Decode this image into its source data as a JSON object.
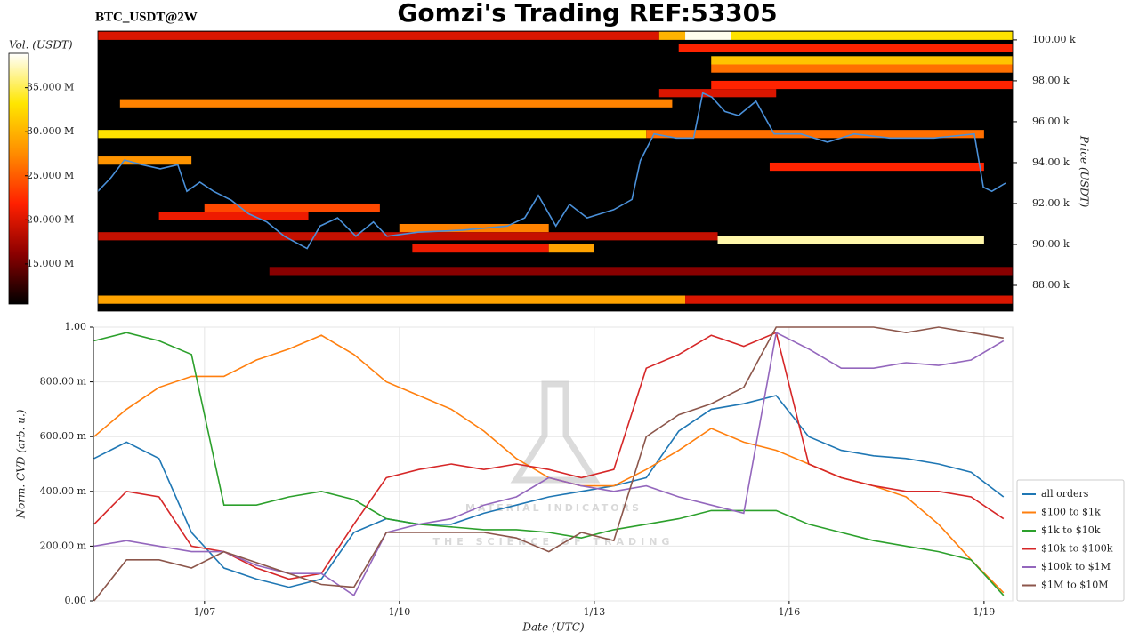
{
  "chart_data": [
    {
      "type": "heatmap",
      "title": "Gomzi's Trading REF:53305",
      "subtitle": "BTC_USDT@2W",
      "colorbar_label": "Vol. (USDT)",
      "y_label": "Price (USDT)",
      "colormap": [
        "#000000",
        "#8b0000",
        "#ff2000",
        "#ff8c00",
        "#ffe600",
        "#ffffff"
      ],
      "clim": [
        10.45,
        38.9
      ],
      "cticks": [
        {
          "value": 15,
          "label": "15.000 M"
        },
        {
          "value": 20,
          "label": "20.000 M"
        },
        {
          "value": 25,
          "label": "25.000 M"
        },
        {
          "value": 30,
          "label": "30.000 M"
        },
        {
          "value": 35,
          "label": "35.000 M"
        }
      ],
      "xlim": [
        5.36,
        19.44
      ],
      "ylim": [
        86.74,
        100.43
      ],
      "yticks": [
        {
          "value": 88,
          "label": "88.00 k"
        },
        {
          "value": 90,
          "label": "90.00 k"
        },
        {
          "value": 92,
          "label": "92.00 k"
        },
        {
          "value": 94,
          "label": "94.00 k"
        },
        {
          "value": 96,
          "label": "96.00 k"
        },
        {
          "value": 98,
          "label": "98.00 k"
        },
        {
          "value": 100,
          "label": "100.00 k"
        }
      ],
      "bin": 0.4,
      "bands": [
        {
          "price": 100.0,
          "start": 5.36,
          "end": 14.0,
          "volume": 20
        },
        {
          "price": 100.0,
          "start": 14.0,
          "end": 14.4,
          "volume": 30
        },
        {
          "price": 100.0,
          "start": 14.4,
          "end": 15.1,
          "volume": 38.5
        },
        {
          "price": 100.0,
          "start": 15.1,
          "end": 19.44,
          "volume": 33
        },
        {
          "price": 99.4,
          "start": 14.3,
          "end": 19.44,
          "volume": 22
        },
        {
          "price": 98.8,
          "start": 14.8,
          "end": 19.44,
          "volume": 31
        },
        {
          "price": 98.4,
          "start": 14.8,
          "end": 19.44,
          "volume": 26
        },
        {
          "price": 97.6,
          "start": 14.8,
          "end": 19.44,
          "volume": 22
        },
        {
          "price": 97.2,
          "start": 14.0,
          "end": 15.8,
          "volume": 20
        },
        {
          "price": 96.7,
          "start": 5.7,
          "end": 14.2,
          "volume": 27
        },
        {
          "price": 95.2,
          "start": 5.36,
          "end": 13.8,
          "volume": 33
        },
        {
          "price": 95.2,
          "start": 13.8,
          "end": 19.0,
          "volume": 26
        },
        {
          "price": 93.9,
          "start": 5.36,
          "end": 6.8,
          "volume": 28
        },
        {
          "price": 93.6,
          "start": 15.7,
          "end": 19.0,
          "volume": 22
        },
        {
          "price": 91.6,
          "start": 7.0,
          "end": 9.7,
          "volume": 24
        },
        {
          "price": 91.2,
          "start": 6.3,
          "end": 8.6,
          "volume": 21
        },
        {
          "price": 90.6,
          "start": 10.0,
          "end": 12.3,
          "volume": 27
        },
        {
          "price": 90.2,
          "start": 5.36,
          "end": 14.9,
          "volume": 19
        },
        {
          "price": 90.0,
          "start": 14.9,
          "end": 19.0,
          "volume": 37
        },
        {
          "price": 89.6,
          "start": 10.2,
          "end": 12.3,
          "volume": 21
        },
        {
          "price": 89.6,
          "start": 12.3,
          "end": 13.0,
          "volume": 29
        },
        {
          "price": 88.5,
          "start": 8.0,
          "end": 19.44,
          "volume": 16
        },
        {
          "price": 87.1,
          "start": 5.36,
          "end": 14.4,
          "volume": 29
        },
        {
          "price": 87.1,
          "start": 14.4,
          "end": 19.44,
          "volume": 20
        }
      ],
      "price": {
        "color": "#4a90d9",
        "x": [
          5.36,
          5.56,
          5.77,
          6.04,
          6.32,
          6.59,
          6.73,
          6.93,
          7.14,
          7.41,
          7.68,
          7.96,
          8.23,
          8.58,
          8.78,
          9.05,
          9.33,
          9.6,
          9.81,
          10.29,
          10.97,
          11.66,
          11.93,
          12.14,
          12.41,
          12.62,
          12.89,
          13.3,
          13.58,
          13.71,
          13.92,
          14.26,
          14.53,
          14.67,
          14.81,
          15.01,
          15.22,
          15.49,
          15.77,
          16.18,
          16.59,
          17.0,
          17.55,
          18.23,
          18.85,
          18.99,
          19.12,
          19.33
        ],
        "values": [
          92.6,
          93.26,
          94.13,
          93.9,
          93.7,
          93.9,
          92.6,
          93.04,
          92.6,
          92.17,
          91.5,
          91.1,
          90.4,
          89.8,
          90.9,
          91.3,
          90.4,
          91.1,
          90.4,
          90.6,
          90.7,
          90.9,
          91.3,
          92.4,
          90.9,
          91.96,
          91.3,
          91.7,
          92.2,
          94.1,
          95.4,
          95.2,
          95.2,
          97.4,
          97.2,
          96.5,
          96.3,
          97.0,
          95.4,
          95.4,
          95.0,
          95.4,
          95.2,
          95.2,
          95.4,
          92.8,
          92.6,
          93.0
        ]
      }
    },
    {
      "type": "line",
      "x_label": "Date (UTC)",
      "y_label": "Norm. CVD (arb. u.)",
      "watermark_title": "MATERIAL INDICATORS",
      "watermark_subtitle": "THE SCIENCE OF TRADING",
      "grid": true,
      "xlim": [
        5.29,
        19.44
      ],
      "ylim": [
        0,
        1
      ],
      "xticks": [
        {
          "value": 7,
          "label": "1/07"
        },
        {
          "value": 10,
          "label": "1/10"
        },
        {
          "value": 13,
          "label": "1/13"
        },
        {
          "value": 16,
          "label": "1/16"
        },
        {
          "value": 19,
          "label": "1/19"
        }
      ],
      "yticks": [
        {
          "value": 0,
          "label": "0.00"
        },
        {
          "value": 0.2,
          "label": "200.00 m"
        },
        {
          "value": 0.4,
          "label": "400.00 m"
        },
        {
          "value": 0.6,
          "label": "600.00 m"
        },
        {
          "value": 0.8,
          "label": "800.00 m"
        },
        {
          "value": 1,
          "label": "1.00"
        }
      ],
      "x": [
        5.3,
        5.8,
        6.3,
        6.8,
        7.3,
        7.8,
        8.3,
        8.8,
        9.3,
        9.8,
        10.3,
        10.8,
        11.3,
        11.8,
        12.3,
        12.8,
        13.3,
        13.8,
        14.3,
        14.8,
        15.3,
        15.8,
        16.3,
        16.8,
        17.3,
        17.8,
        18.3,
        18.8,
        19.3
      ],
      "series": [
        {
          "name": "all orders",
          "color": "#1f77b4",
          "values": [
            0.52,
            0.58,
            0.52,
            0.25,
            0.12,
            0.08,
            0.05,
            0.08,
            0.25,
            0.3,
            0.28,
            0.28,
            0.32,
            0.35,
            0.38,
            0.4,
            0.42,
            0.45,
            0.62,
            0.7,
            0.72,
            0.75,
            0.6,
            0.55,
            0.53,
            0.52,
            0.5,
            0.47,
            0.38
          ]
        },
        {
          "name": "$100 to $1k",
          "color": "#ff7f0e",
          "values": [
            0.6,
            0.7,
            0.78,
            0.82,
            0.82,
            0.88,
            0.92,
            0.97,
            0.9,
            0.8,
            0.75,
            0.7,
            0.62,
            0.52,
            0.45,
            0.42,
            0.42,
            0.48,
            0.55,
            0.63,
            0.58,
            0.55,
            0.5,
            0.45,
            0.42,
            0.38,
            0.28,
            0.15,
            0.03
          ]
        },
        {
          "name": "$1k to $10k",
          "color": "#2ca02c",
          "values": [
            0.95,
            0.98,
            0.95,
            0.9,
            0.35,
            0.35,
            0.38,
            0.4,
            0.37,
            0.3,
            0.28,
            0.27,
            0.26,
            0.26,
            0.25,
            0.23,
            0.26,
            0.28,
            0.3,
            0.33,
            0.33,
            0.33,
            0.28,
            0.25,
            0.22,
            0.2,
            0.18,
            0.15,
            0.02
          ]
        },
        {
          "name": "$10k to $100k",
          "color": "#d62728",
          "values": [
            0.28,
            0.4,
            0.38,
            0.2,
            0.18,
            0.12,
            0.08,
            0.1,
            0.28,
            0.45,
            0.48,
            0.5,
            0.48,
            0.5,
            0.48,
            0.45,
            0.48,
            0.85,
            0.9,
            0.97,
            0.93,
            0.98,
            0.5,
            0.45,
            0.42,
            0.4,
            0.4,
            0.38,
            0.3
          ]
        },
        {
          "name": "$100k to $1M",
          "color": "#9467bd",
          "values": [
            0.2,
            0.22,
            0.2,
            0.18,
            0.18,
            0.13,
            0.1,
            0.1,
            0.02,
            0.25,
            0.28,
            0.3,
            0.35,
            0.38,
            0.45,
            0.42,
            0.4,
            0.42,
            0.38,
            0.35,
            0.32,
            0.98,
            0.92,
            0.85,
            0.85,
            0.87,
            0.86,
            0.88,
            0.95
          ]
        },
        {
          "name": "$1M to $10M",
          "color": "#8c564b",
          "values": [
            0.0,
            0.15,
            0.15,
            0.12,
            0.18,
            0.14,
            0.1,
            0.06,
            0.05,
            0.25,
            0.25,
            0.25,
            0.25,
            0.23,
            0.18,
            0.25,
            0.22,
            0.6,
            0.68,
            0.72,
            0.78,
            1.0,
            1.0,
            1.0,
            1.0,
            0.98,
            1.0,
            0.98,
            0.96
          ]
        }
      ]
    }
  ]
}
